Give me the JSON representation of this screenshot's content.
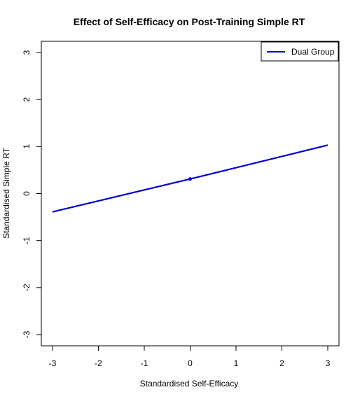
{
  "chart_data": {
    "type": "line",
    "title": "Effect of Self-Efficacy on Post-Training Simple RT",
    "xlabel": "Standardised Self-Efficacy",
    "ylabel": "Standardised Simple RT",
    "xlim": [
      -3,
      3
    ],
    "ylim": [
      -3,
      3
    ],
    "x_ticks": [
      "-3",
      "-2",
      "-1",
      "0",
      "1",
      "2",
      "3"
    ],
    "y_ticks": [
      "-3",
      "-2",
      "-1",
      "0",
      "1",
      "2",
      "3"
    ],
    "grid": false,
    "legend_position": "top-right",
    "series": [
      {
        "name": "Dual Group",
        "color": "#0000CD",
        "x": [
          -3,
          0,
          3
        ],
        "y": [
          -0.39,
          0.31,
          1.03
        ],
        "marker_points": [
          {
            "x": 0,
            "y": 0.31
          }
        ]
      }
    ]
  }
}
